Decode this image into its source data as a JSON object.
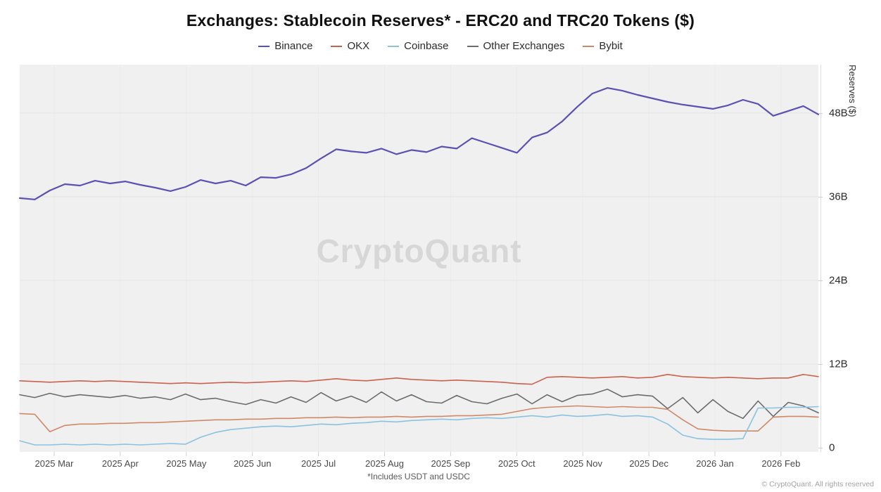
{
  "title": "Exchanges: Stablecoin Reserves* - ERC20 and TRC20 Tokens ($)",
  "watermark": "CryptoQuant",
  "footnote": "*Includes USDT and USDC",
  "copyright": "© CryptoQuant. All rights reserved",
  "chart_data": {
    "type": "line",
    "title": "Exchanges: Stablecoin Reserves* - ERC20 and TRC20 Tokens ($)",
    "ylabel": "Reserves ($)",
    "unit": "billions of USD",
    "ylim": [
      0,
      55
    ],
    "grid": "horizontal",
    "legend_position": "top",
    "x_range": "2025 Feb 20 to 2026 Feb 19, weekly samples",
    "x_ticks": [
      "2025 Mar",
      "2025 Apr",
      "2025 May",
      "2025 Jun",
      "2025 Jul",
      "2025 Aug",
      "2025 Sep",
      "2025 Oct",
      "2025 Nov",
      "2025 Dec",
      "2026 Jan",
      "2026 Feb"
    ],
    "y_ticks": [
      {
        "value": 0,
        "label": "0"
      },
      {
        "value": 12,
        "label": "12B"
      },
      {
        "value": 24,
        "label": "24B"
      },
      {
        "value": 36,
        "label": "36B"
      },
      {
        "value": 48,
        "label": "48B"
      }
    ],
    "series": [
      {
        "name": "Binance",
        "color": "#5b51b4",
        "values": [
          35.8,
          35.6,
          36.9,
          37.8,
          37.6,
          38.3,
          37.9,
          38.2,
          37.7,
          37.3,
          36.8,
          37.4,
          38.4,
          37.9,
          38.3,
          37.6,
          38.8,
          38.7,
          39.2,
          40.1,
          41.5,
          42.8,
          42.5,
          42.3,
          42.9,
          42.1,
          42.7,
          42.4,
          43.2,
          42.9,
          44.4,
          43.7,
          43.0,
          42.3,
          44.5,
          45.2,
          46.8,
          48.9,
          50.8,
          51.6,
          51.2,
          50.6,
          50.1,
          49.6,
          49.2,
          48.9,
          48.6,
          49.1,
          49.9,
          49.3,
          47.6,
          48.3,
          49.0,
          47.8
        ]
      },
      {
        "name": "OKX",
        "color": "#cc614e",
        "values": [
          9.6,
          9.5,
          9.4,
          9.5,
          9.6,
          9.5,
          9.6,
          9.5,
          9.4,
          9.3,
          9.2,
          9.3,
          9.2,
          9.3,
          9.4,
          9.3,
          9.4,
          9.5,
          9.6,
          9.5,
          9.7,
          9.9,
          9.7,
          9.6,
          9.8,
          10.0,
          9.8,
          9.7,
          9.6,
          9.7,
          9.6,
          9.5,
          9.4,
          9.2,
          9.1,
          10.1,
          10.2,
          10.1,
          10.0,
          10.1,
          10.2,
          10.0,
          10.1,
          10.5,
          10.2,
          10.1,
          10.0,
          10.1,
          10.0,
          9.9,
          10.0,
          10.0,
          10.5,
          10.2
        ]
      },
      {
        "name": "Coinbase",
        "color": "#8ac2e0",
        "values": [
          1.0,
          0.4,
          0.4,
          0.5,
          0.4,
          0.5,
          0.4,
          0.5,
          0.4,
          0.5,
          0.6,
          0.5,
          1.5,
          2.2,
          2.6,
          2.8,
          3.0,
          3.1,
          3.0,
          3.2,
          3.4,
          3.3,
          3.5,
          3.6,
          3.8,
          3.7,
          3.9,
          4.0,
          4.1,
          4.0,
          4.2,
          4.3,
          4.2,
          4.4,
          4.6,
          4.4,
          4.7,
          4.5,
          4.6,
          4.8,
          4.5,
          4.6,
          4.4,
          3.4,
          1.8,
          1.3,
          1.2,
          1.2,
          1.3,
          5.7,
          5.7,
          5.8,
          5.8,
          5.9
        ]
      },
      {
        "name": "Other Exchanges",
        "color": "#6b6b70",
        "values": [
          7.6,
          7.2,
          7.8,
          7.3,
          7.6,
          7.4,
          7.2,
          7.5,
          7.1,
          7.3,
          6.9,
          7.7,
          6.9,
          7.1,
          6.6,
          6.2,
          6.9,
          6.4,
          7.3,
          6.5,
          7.9,
          6.7,
          7.4,
          6.5,
          8.0,
          6.7,
          7.6,
          6.6,
          6.4,
          7.5,
          6.6,
          6.3,
          7.1,
          7.7,
          6.3,
          7.6,
          6.6,
          7.5,
          7.7,
          8.4,
          7.3,
          7.6,
          7.4,
          5.6,
          7.2,
          5.0,
          6.9,
          5.2,
          4.2,
          6.7,
          4.5,
          6.5,
          6.0,
          5.0
        ]
      },
      {
        "name": "Bybit",
        "color": "#d08868",
        "values": [
          4.9,
          4.8,
          2.3,
          3.2,
          3.4,
          3.4,
          3.5,
          3.5,
          3.6,
          3.6,
          3.7,
          3.8,
          3.9,
          4.0,
          4.0,
          4.1,
          4.1,
          4.2,
          4.2,
          4.3,
          4.3,
          4.4,
          4.3,
          4.4,
          4.4,
          4.5,
          4.4,
          4.5,
          4.5,
          4.6,
          4.6,
          4.7,
          4.8,
          5.2,
          5.6,
          5.8,
          5.9,
          6.0,
          5.9,
          5.8,
          5.9,
          5.8,
          5.8,
          5.5,
          4.0,
          2.7,
          2.5,
          2.4,
          2.4,
          2.4,
          4.4,
          4.5,
          4.5,
          4.4
        ]
      }
    ]
  }
}
